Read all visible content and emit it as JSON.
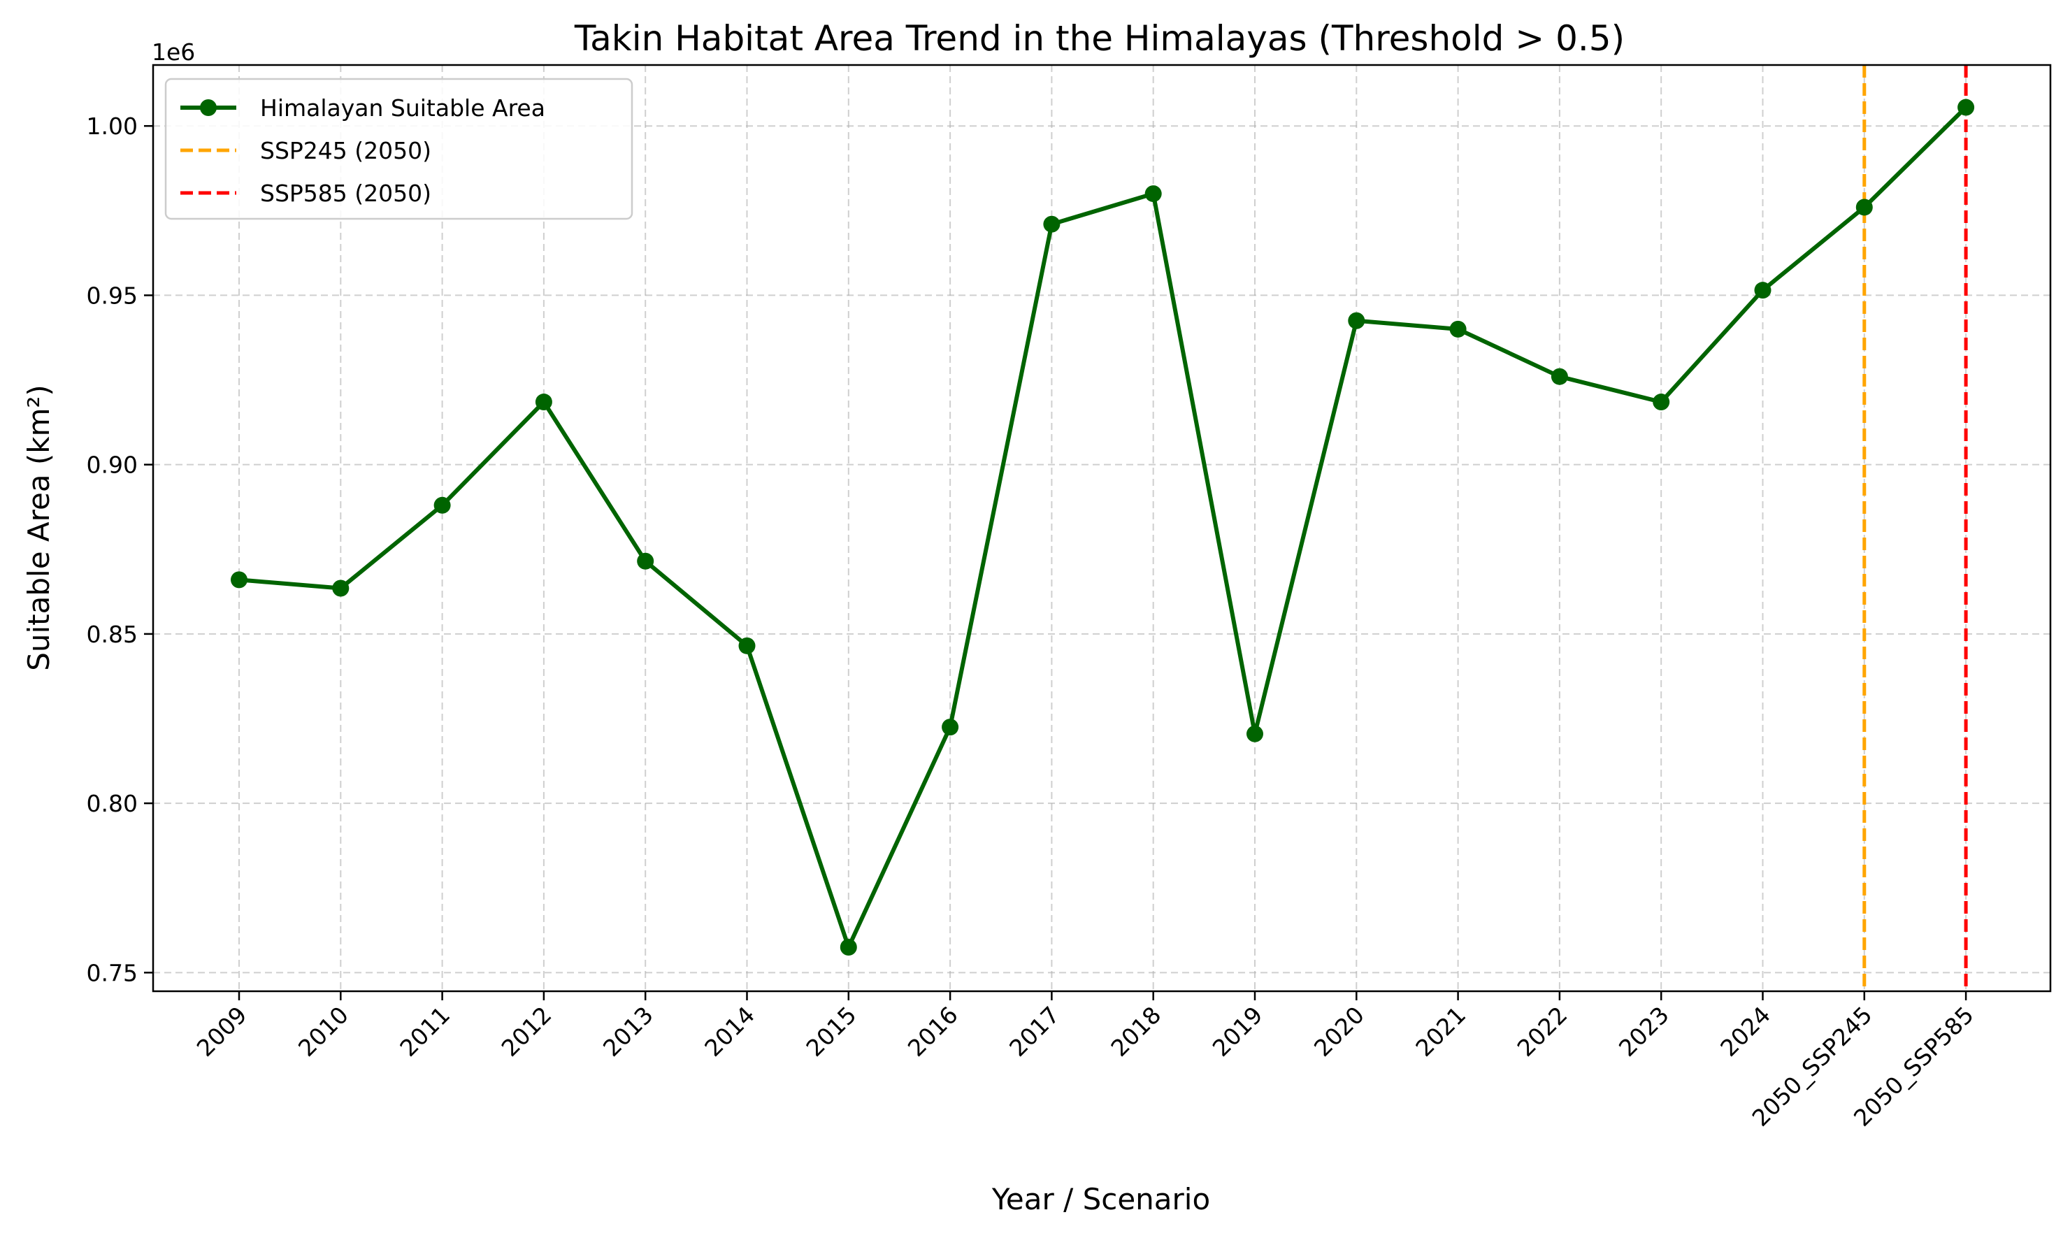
{
  "chart_data": {
    "type": "line",
    "title": "Takin Habitat Area Trend in the Himalayas (Threshold > 0.5)",
    "xlabel": "Year / Scenario",
    "ylabel": "Suitable Area (km²)",
    "y_offset_label": "1e6",
    "categories": [
      "2009",
      "2010",
      "2011",
      "2012",
      "2013",
      "2014",
      "2015",
      "2016",
      "2017",
      "2018",
      "2019",
      "2020",
      "2021",
      "2022",
      "2023",
      "2024",
      "2050_SSP245",
      "2050_SSP585"
    ],
    "series": [
      {
        "name": "Himalayan Suitable Area",
        "color": "#006400",
        "values": [
          866000,
          863500,
          888000,
          918500,
          871500,
          846500,
          757500,
          822500,
          971000,
          980000,
          820500,
          942500,
          940000,
          926000,
          918500,
          951500,
          976000,
          1005500
        ]
      }
    ],
    "reference_lines": [
      {
        "name": "SSP245 (2050)",
        "category": "2050_SSP245",
        "color": "#ffa500",
        "style": "dashed"
      },
      {
        "name": "SSP585 (2050)",
        "category": "2050_SSP585",
        "color": "#ff0000",
        "style": "dashed"
      }
    ],
    "y_ticks": [
      750000,
      800000,
      850000,
      900000,
      950000,
      1000000
    ],
    "y_tick_labels": [
      "0.75",
      "0.80",
      "0.85",
      "0.90",
      "0.95",
      "1.00"
    ],
    "ylim": [
      744500,
      1018000
    ],
    "grid": true,
    "legend_position": "top-left"
  }
}
